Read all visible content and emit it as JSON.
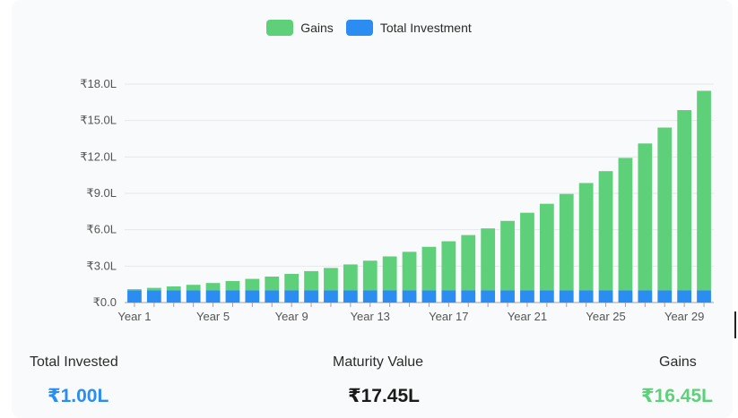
{
  "colors": {
    "gains": "#5fd07a",
    "investment": "#2b8cf2",
    "grid": "#e5e7eb",
    "axis": "#9ca3af",
    "total_invested_value": "#2b8cf2",
    "maturity_value": "#1a1a1a",
    "gains_value": "#5fd07a"
  },
  "legend": {
    "gains_label": "Gains",
    "investment_label": "Total Investment"
  },
  "summary": {
    "total_invested_label": "Total Invested",
    "total_invested_value": "₹1.00L",
    "maturity_label": "Maturity Value",
    "maturity_value": "₹17.45L",
    "gains_label": "Gains",
    "gains_value": "₹16.45L"
  },
  "chart_data": {
    "type": "bar",
    "stacked": true,
    "categories": [
      "Year 1",
      "Year 2",
      "Year 3",
      "Year 4",
      "Year 5",
      "Year 6",
      "Year 7",
      "Year 8",
      "Year 9",
      "Year 10",
      "Year 11",
      "Year 12",
      "Year 13",
      "Year 14",
      "Year 15",
      "Year 16",
      "Year 17",
      "Year 18",
      "Year 19",
      "Year 20",
      "Year 21",
      "Year 22",
      "Year 23",
      "Year 24",
      "Year 25",
      "Year 26",
      "Year 27",
      "Year 28",
      "Year 29",
      "Year 30"
    ],
    "x_tick_labels": [
      "Year 1",
      "Year 5",
      "Year 9",
      "Year 13",
      "Year 17",
      "Year 21",
      "Year 25",
      "Year 29"
    ],
    "series": [
      {
        "name": "Total Investment",
        "values": [
          1,
          1,
          1,
          1,
          1,
          1,
          1,
          1,
          1,
          1,
          1,
          1,
          1,
          1,
          1,
          1,
          1,
          1,
          1,
          1,
          1,
          1,
          1,
          1,
          1,
          1,
          1,
          1,
          1,
          1
        ]
      },
      {
        "name": "Gains",
        "values": [
          0.1,
          0.21,
          0.33,
          0.46,
          0.61,
          0.77,
          0.95,
          1.14,
          1.36,
          1.59,
          1.85,
          2.14,
          2.45,
          2.8,
          3.18,
          3.59,
          4.05,
          4.56,
          5.11,
          5.73,
          6.4,
          7.14,
          7.95,
          8.85,
          9.83,
          10.92,
          12.11,
          13.42,
          14.86,
          16.45
        ]
      }
    ],
    "ylim": [
      0,
      18
    ],
    "y_ticks": [
      0,
      3,
      6,
      9,
      12,
      15,
      18
    ],
    "y_tick_labels": [
      "₹0.0",
      "₹3.0L",
      "₹6.0L",
      "₹9.0L",
      "₹12.0L",
      "₹15.0L",
      "₹18.0L"
    ],
    "grid": true,
    "legend_position": "top-center"
  }
}
